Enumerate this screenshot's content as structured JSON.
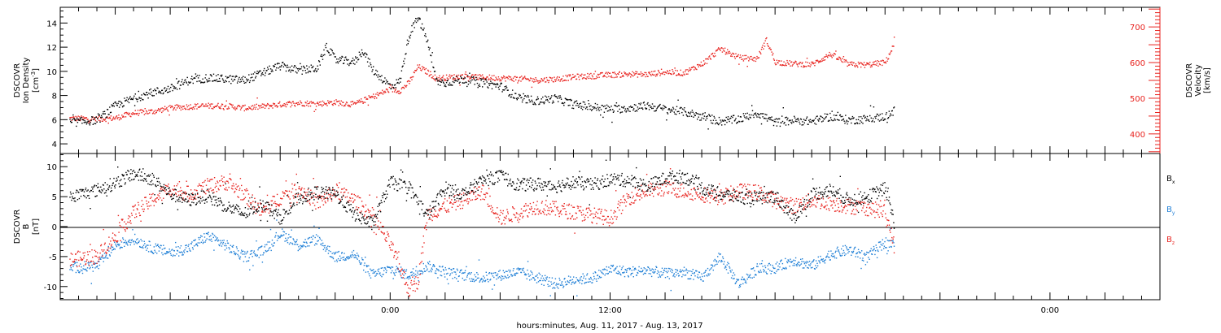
{
  "colors": {
    "black": "#000000",
    "red": "#e8231f",
    "blue": "#1f7fd6"
  },
  "xaxis": {
    "label": "hours:minutes, Aug. 11, 2017 - Aug. 13, 2017",
    "range_hours": [
      -18,
      42
    ],
    "data_end_hours": 27.5,
    "tick_labels": [
      {
        "t": 0,
        "text": "0:00"
      },
      {
        "t": 12,
        "text": "12:00"
      },
      {
        "t": 36,
        "text": "0:00"
      }
    ]
  },
  "panel1": {
    "ylabel_lines": [
      "DSCOVR",
      "Ion Density",
      "[cm"
    ],
    "ylabel_sup": "-3",
    "ylabel_close": "]",
    "ylabel_right_lines": [
      "DSCOVR",
      "Velocity",
      "[km/s]"
    ],
    "left_ticks": [
      "4",
      "6",
      "8",
      "10",
      "12",
      "14"
    ],
    "right_ticks": [
      "400",
      "500",
      "600",
      "700"
    ]
  },
  "panel2": {
    "ylabel_lines": [
      "DSCOVR",
      "B",
      "[nT]"
    ],
    "left_ticks": [
      "-10",
      "-5",
      "0",
      "5",
      "10"
    ],
    "legend": [
      {
        "base": "B",
        "sub": "x",
        "color": "#000000"
      },
      {
        "base": "B",
        "sub": "y",
        "color": "#1f7fd6"
      },
      {
        "base": "B",
        "sub": "z",
        "color": "#e8231f"
      }
    ]
  },
  "chart_data": [
    {
      "type": "scatter",
      "title": "",
      "xlabel": "hours:minutes, Aug. 11, 2017 - Aug. 13, 2017",
      "xlim": [
        -18,
        42
      ],
      "series": [
        {
          "name": "Ion Density",
          "axis": "left",
          "ylabel": "DSCOVR Ion Density [cm-3]",
          "ylim": [
            3.2,
            15.3
          ],
          "color": "#000000",
          "x": [
            -17.5,
            -16,
            -15,
            -14,
            -13,
            -12,
            -11,
            -10,
            -9,
            -8,
            -7,
            -6,
            -5,
            -4,
            -3.5,
            -3,
            -2,
            -1.5,
            -1,
            0,
            0.5,
            1,
            1.5,
            2,
            2.5,
            3,
            4,
            5,
            6,
            7,
            8,
            9,
            10,
            11,
            12,
            13,
            14,
            15,
            16,
            17,
            18,
            19,
            20,
            21,
            22,
            23,
            24,
            25,
            26,
            27,
            27.5
          ],
          "y": [
            5.8,
            6.0,
            7.2,
            7.8,
            8.3,
            8.6,
            9.3,
            9.5,
            9.4,
            9.3,
            9.9,
            10.5,
            10.1,
            10.3,
            12.1,
            11.0,
            10.8,
            11.8,
            10.2,
            8.8,
            9.2,
            13.0,
            14.5,
            12.6,
            9.2,
            9.1,
            9.4,
            9.1,
            8.8,
            7.8,
            7.6,
            7.8,
            7.3,
            7.1,
            6.9,
            7.0,
            7.2,
            6.9,
            6.7,
            6.3,
            5.9,
            6.1,
            6.6,
            5.8,
            6.0,
            5.9,
            6.3,
            6.0,
            6.1,
            6.3,
            6.8
          ]
        },
        {
          "name": "Velocity",
          "axis": "right",
          "ylabel": "DSCOVR Velocity [km/s]",
          "ylim": [
            345,
            755
          ],
          "color": "#e8231f",
          "x": [
            -17.5,
            -16,
            -15,
            -14,
            -13,
            -12,
            -11,
            -10,
            -9,
            -8,
            -7,
            -6,
            -5,
            -4,
            -3,
            -2,
            -1,
            0,
            0.5,
            1,
            1.5,
            2,
            2.5,
            3,
            4,
            5,
            6,
            7,
            8,
            9,
            10,
            11,
            12,
            13,
            14,
            15,
            16,
            17,
            18,
            19,
            20,
            20.5,
            21,
            22,
            23,
            24,
            25,
            26,
            27,
            27.5
          ],
          "y": [
            445,
            443,
            446,
            460,
            464,
            474,
            478,
            480,
            480,
            474,
            478,
            484,
            488,
            486,
            490,
            484,
            505,
            527,
            522,
            545,
            590,
            575,
            557,
            559,
            563,
            560,
            558,
            556,
            552,
            555,
            561,
            564,
            567,
            569,
            568,
            575,
            572,
            598,
            640,
            615,
            612,
            665,
            603,
            598,
            596,
            625,
            596,
            595,
            602,
            655
          ]
        }
      ]
    },
    {
      "type": "scatter",
      "title": "",
      "xlabel": "hours:minutes, Aug. 11, 2017 - Aug. 13, 2017",
      "ylabel": "DSCOVR B [nT]",
      "xlim": [
        -18,
        42
      ],
      "ylim": [
        -12.2,
        12.2
      ],
      "series": [
        {
          "name": "Bx",
          "color": "#000000",
          "x": [
            -17.5,
            -16,
            -15,
            -14,
            -13,
            -12,
            -11,
            -10,
            -9,
            -8,
            -7,
            -6,
            -5,
            -4,
            -3,
            -2,
            -1,
            0,
            1,
            2,
            3,
            4,
            5,
            6,
            7,
            8,
            9,
            10,
            11,
            12,
            13,
            14,
            15,
            16,
            17,
            18,
            19,
            20,
            21,
            22,
            23,
            24,
            25,
            26,
            27,
            27.5
          ],
          "y": [
            5.0,
            6.2,
            7.4,
            8.9,
            8.0,
            5.5,
            4.5,
            5.2,
            3.5,
            2.2,
            4.0,
            1.5,
            5.0,
            5.8,
            5.5,
            2.2,
            0.5,
            7.5,
            6.5,
            2.0,
            6.5,
            5.5,
            7.8,
            8.5,
            7.0,
            7.2,
            6.8,
            7.5,
            7.0,
            8.0,
            7.8,
            6.8,
            8.2,
            8.5,
            6.5,
            5.5,
            5.0,
            4.8,
            5.2,
            1.5,
            5.5,
            6.2,
            4.5,
            5.0,
            6.5,
            0.5
          ]
        },
        {
          "name": "By",
          "color": "#1f7fd6",
          "x": [
            -17.5,
            -16,
            -15,
            -14,
            -13,
            -12,
            -11,
            -10,
            -9,
            -8,
            -7,
            -6,
            -5,
            -4,
            -3,
            -2,
            -1,
            0,
            1,
            2,
            3,
            4,
            5,
            6,
            7,
            8,
            9,
            10,
            11,
            12,
            13,
            14,
            15,
            16,
            17,
            18,
            19,
            20,
            21,
            22,
            23,
            24,
            25,
            26,
            27,
            27.5
          ],
          "y": [
            -6.8,
            -6.5,
            -3.0,
            -2.0,
            -3.5,
            -4.2,
            -3.5,
            -1.5,
            -3.0,
            -5.0,
            -4.0,
            -1.0,
            -3.0,
            -2.0,
            -5.0,
            -4.5,
            -8.0,
            -7.0,
            -8.0,
            -6.5,
            -7.5,
            -8.0,
            -8.5,
            -8.0,
            -7.5,
            -8.5,
            -9.5,
            -8.8,
            -8.5,
            -7.0,
            -7.5,
            -7.2,
            -7.8,
            -7.5,
            -8.5,
            -5.0,
            -9.5,
            -7.0,
            -6.8,
            -5.5,
            -6.5,
            -4.5,
            -3.8,
            -5.0,
            -2.5,
            -3.0
          ]
        },
        {
          "name": "Bz",
          "color": "#e8231f",
          "x": [
            -17.5,
            -16,
            -15,
            -14,
            -13,
            -12,
            -11,
            -10,
            -9,
            -8,
            -7,
            -6,
            -5,
            -4,
            -3,
            -2,
            -1,
            0,
            1,
            1.5,
            2,
            3,
            4,
            5,
            6,
            7,
            8,
            9,
            10,
            11,
            12,
            13,
            14,
            15,
            16,
            17,
            18,
            19,
            20,
            21,
            22,
            23,
            24,
            25,
            26,
            27,
            27.5
          ],
          "y": [
            -5.5,
            -4.8,
            -1.5,
            2.5,
            4.5,
            6.5,
            5.5,
            6.8,
            7.5,
            5.5,
            2.5,
            5.0,
            6.5,
            4.0,
            6.0,
            4.5,
            2.0,
            -3.0,
            -10.5,
            -9.0,
            2.0,
            3.5,
            4.5,
            6.0,
            1.5,
            2.5,
            3.5,
            3.0,
            2.5,
            2.0,
            1.5,
            5.0,
            6.0,
            6.5,
            6.0,
            5.5,
            5.0,
            6.0,
            5.8,
            4.5,
            3.5,
            4.5,
            4.0,
            3.5,
            3.2,
            2.5,
            -3.5
          ]
        }
      ]
    }
  ]
}
